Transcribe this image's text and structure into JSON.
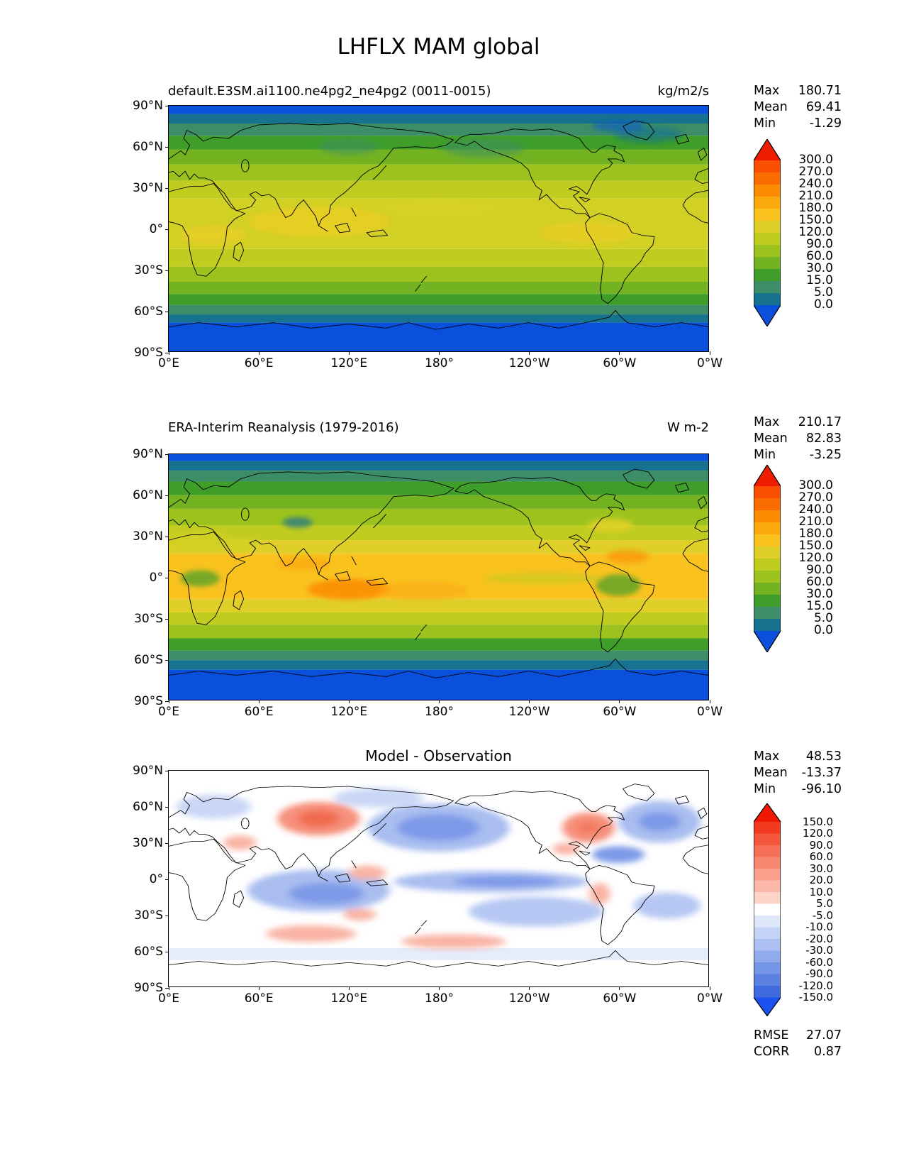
{
  "figure": {
    "title": "LHFLX MAM global"
  },
  "axes": {
    "x_ticks": [
      "0°E",
      "60°E",
      "120°E",
      "180°",
      "120°W",
      "60°W",
      "0°W"
    ],
    "y_ticks": [
      "90°N",
      "60°N",
      "30°N",
      "0°",
      "30°S",
      "60°S",
      "90°S"
    ]
  },
  "stats_labels": {
    "max": "Max",
    "mean": "Mean",
    "min": "Min",
    "rmse": "RMSE",
    "corr": "CORR"
  },
  "panels": [
    {
      "title": "default.E3SM.ai1100.ne4pg2_ne4pg2 (0011-0015)",
      "units": "kg/m2/s",
      "stats": {
        "max": "180.71",
        "mean": "69.41",
        "min": "-1.29"
      }
    },
    {
      "title": "ERA-Interim Reanalysis (1979-2016)",
      "units": "W m-2",
      "stats": {
        "max": "210.17",
        "mean": "82.83",
        "min": "-3.25"
      }
    },
    {
      "title": "Model - Observation",
      "units": "",
      "stats": {
        "max": "48.53",
        "mean": "-13.37",
        "min": "-96.10"
      },
      "metrics": {
        "rmse": "27.07",
        "corr": "0.87"
      }
    }
  ],
  "colorbars": {
    "absolute": {
      "ticks": [
        "300.0",
        "270.0",
        "240.0",
        "210.0",
        "180.0",
        "150.0",
        "120.0",
        "90.0",
        "60.0",
        "30.0",
        "15.0",
        "5.0",
        "0.0"
      ],
      "colors": [
        "#ee1c00",
        "#fa4e00",
        "#fb6c00",
        "#fb8b00",
        "#fbaa0e",
        "#f9c21f",
        "#e0cf28",
        "#c1cc20",
        "#9cc31d",
        "#73b322",
        "#3f9e2a",
        "#3d8e68",
        "#17728f",
        "#0a50dc"
      ]
    },
    "diff": {
      "ticks": [
        "150.0",
        "120.0",
        "90.0",
        "60.0",
        "30.0",
        "20.0",
        "10.0",
        "5.0",
        "-5.0",
        "-10.0",
        "-20.0",
        "-30.0",
        "-60.0",
        "-90.0",
        "-120.0",
        "-150.0"
      ],
      "colors": [
        "#f01800",
        "#f23a21",
        "#f4573c",
        "#f66f56",
        "#f88770",
        "#faa08c",
        "#fbb8a8",
        "#fdd3c8",
        "#ffffff",
        "#dfe7fa",
        "#c5d3f6",
        "#abc0f1",
        "#90abec",
        "#7595e7",
        "#5a80e2",
        "#3f6add",
        "#1c52f0"
      ]
    }
  },
  "chart_data": [
    {
      "type": "heatmap",
      "subtype": "lat_lon_filled_contour_map",
      "panel": "model",
      "title": "default.E3SM.ai1100.ne4pg2_ne4pg2 (0011-0015)",
      "variable": "LHFLX",
      "season": "MAM",
      "region": "global",
      "units": "kg/m2/s",
      "projection": "equirectangular",
      "lon_range_deg_east": [
        0,
        360
      ],
      "lat_range": [
        -90,
        90
      ],
      "x_tick_labels": [
        "0°E",
        "60°E",
        "120°E",
        "180°",
        "120°W",
        "60°W",
        "0°W"
      ],
      "y_tick_labels": [
        "90°N",
        "60°N",
        "30°N",
        "0°",
        "30°S",
        "60°S",
        "90°S"
      ],
      "contour_levels": [
        0,
        5,
        15,
        30,
        60,
        90,
        120,
        150,
        180,
        210,
        240,
        270,
        300
      ],
      "colormap": "rainbow blue-teal-green-yellow-orange-red, extended arrows both ends",
      "stats": {
        "max": 180.71,
        "mean": 69.41,
        "min": -1.29
      }
    },
    {
      "type": "heatmap",
      "subtype": "lat_lon_filled_contour_map",
      "panel": "observation",
      "title": "ERA-Interim Reanalysis (1979-2016)",
      "variable": "LHFLX",
      "season": "MAM",
      "region": "global",
      "units": "W m-2",
      "projection": "equirectangular",
      "lon_range_deg_east": [
        0,
        360
      ],
      "lat_range": [
        -90,
        90
      ],
      "contour_levels": [
        0,
        5,
        15,
        30,
        60,
        90,
        120,
        150,
        180,
        210,
        240,
        270,
        300
      ],
      "colormap": "rainbow blue-teal-green-yellow-orange-red, extended arrows both ends",
      "stats": {
        "max": 210.17,
        "mean": 82.83,
        "min": -3.25
      }
    },
    {
      "type": "heatmap",
      "subtype": "lat_lon_filled_contour_map",
      "panel": "difference",
      "title": "Model - Observation",
      "variable": "LHFLX",
      "season": "MAM",
      "region": "global",
      "projection": "equirectangular",
      "lon_range_deg_east": [
        0,
        360
      ],
      "lat_range": [
        -90,
        90
      ],
      "contour_levels": [
        -150,
        -120,
        -90,
        -60,
        -30,
        -20,
        -10,
        -5,
        5,
        10,
        20,
        30,
        60,
        90,
        120,
        150
      ],
      "colormap": "diverging red-white-blue, extended arrows both ends",
      "stats": {
        "max": 48.53,
        "mean": -13.37,
        "min": -96.1
      },
      "metrics": {
        "rmse": 27.07,
        "corr": 0.87
      }
    }
  ]
}
